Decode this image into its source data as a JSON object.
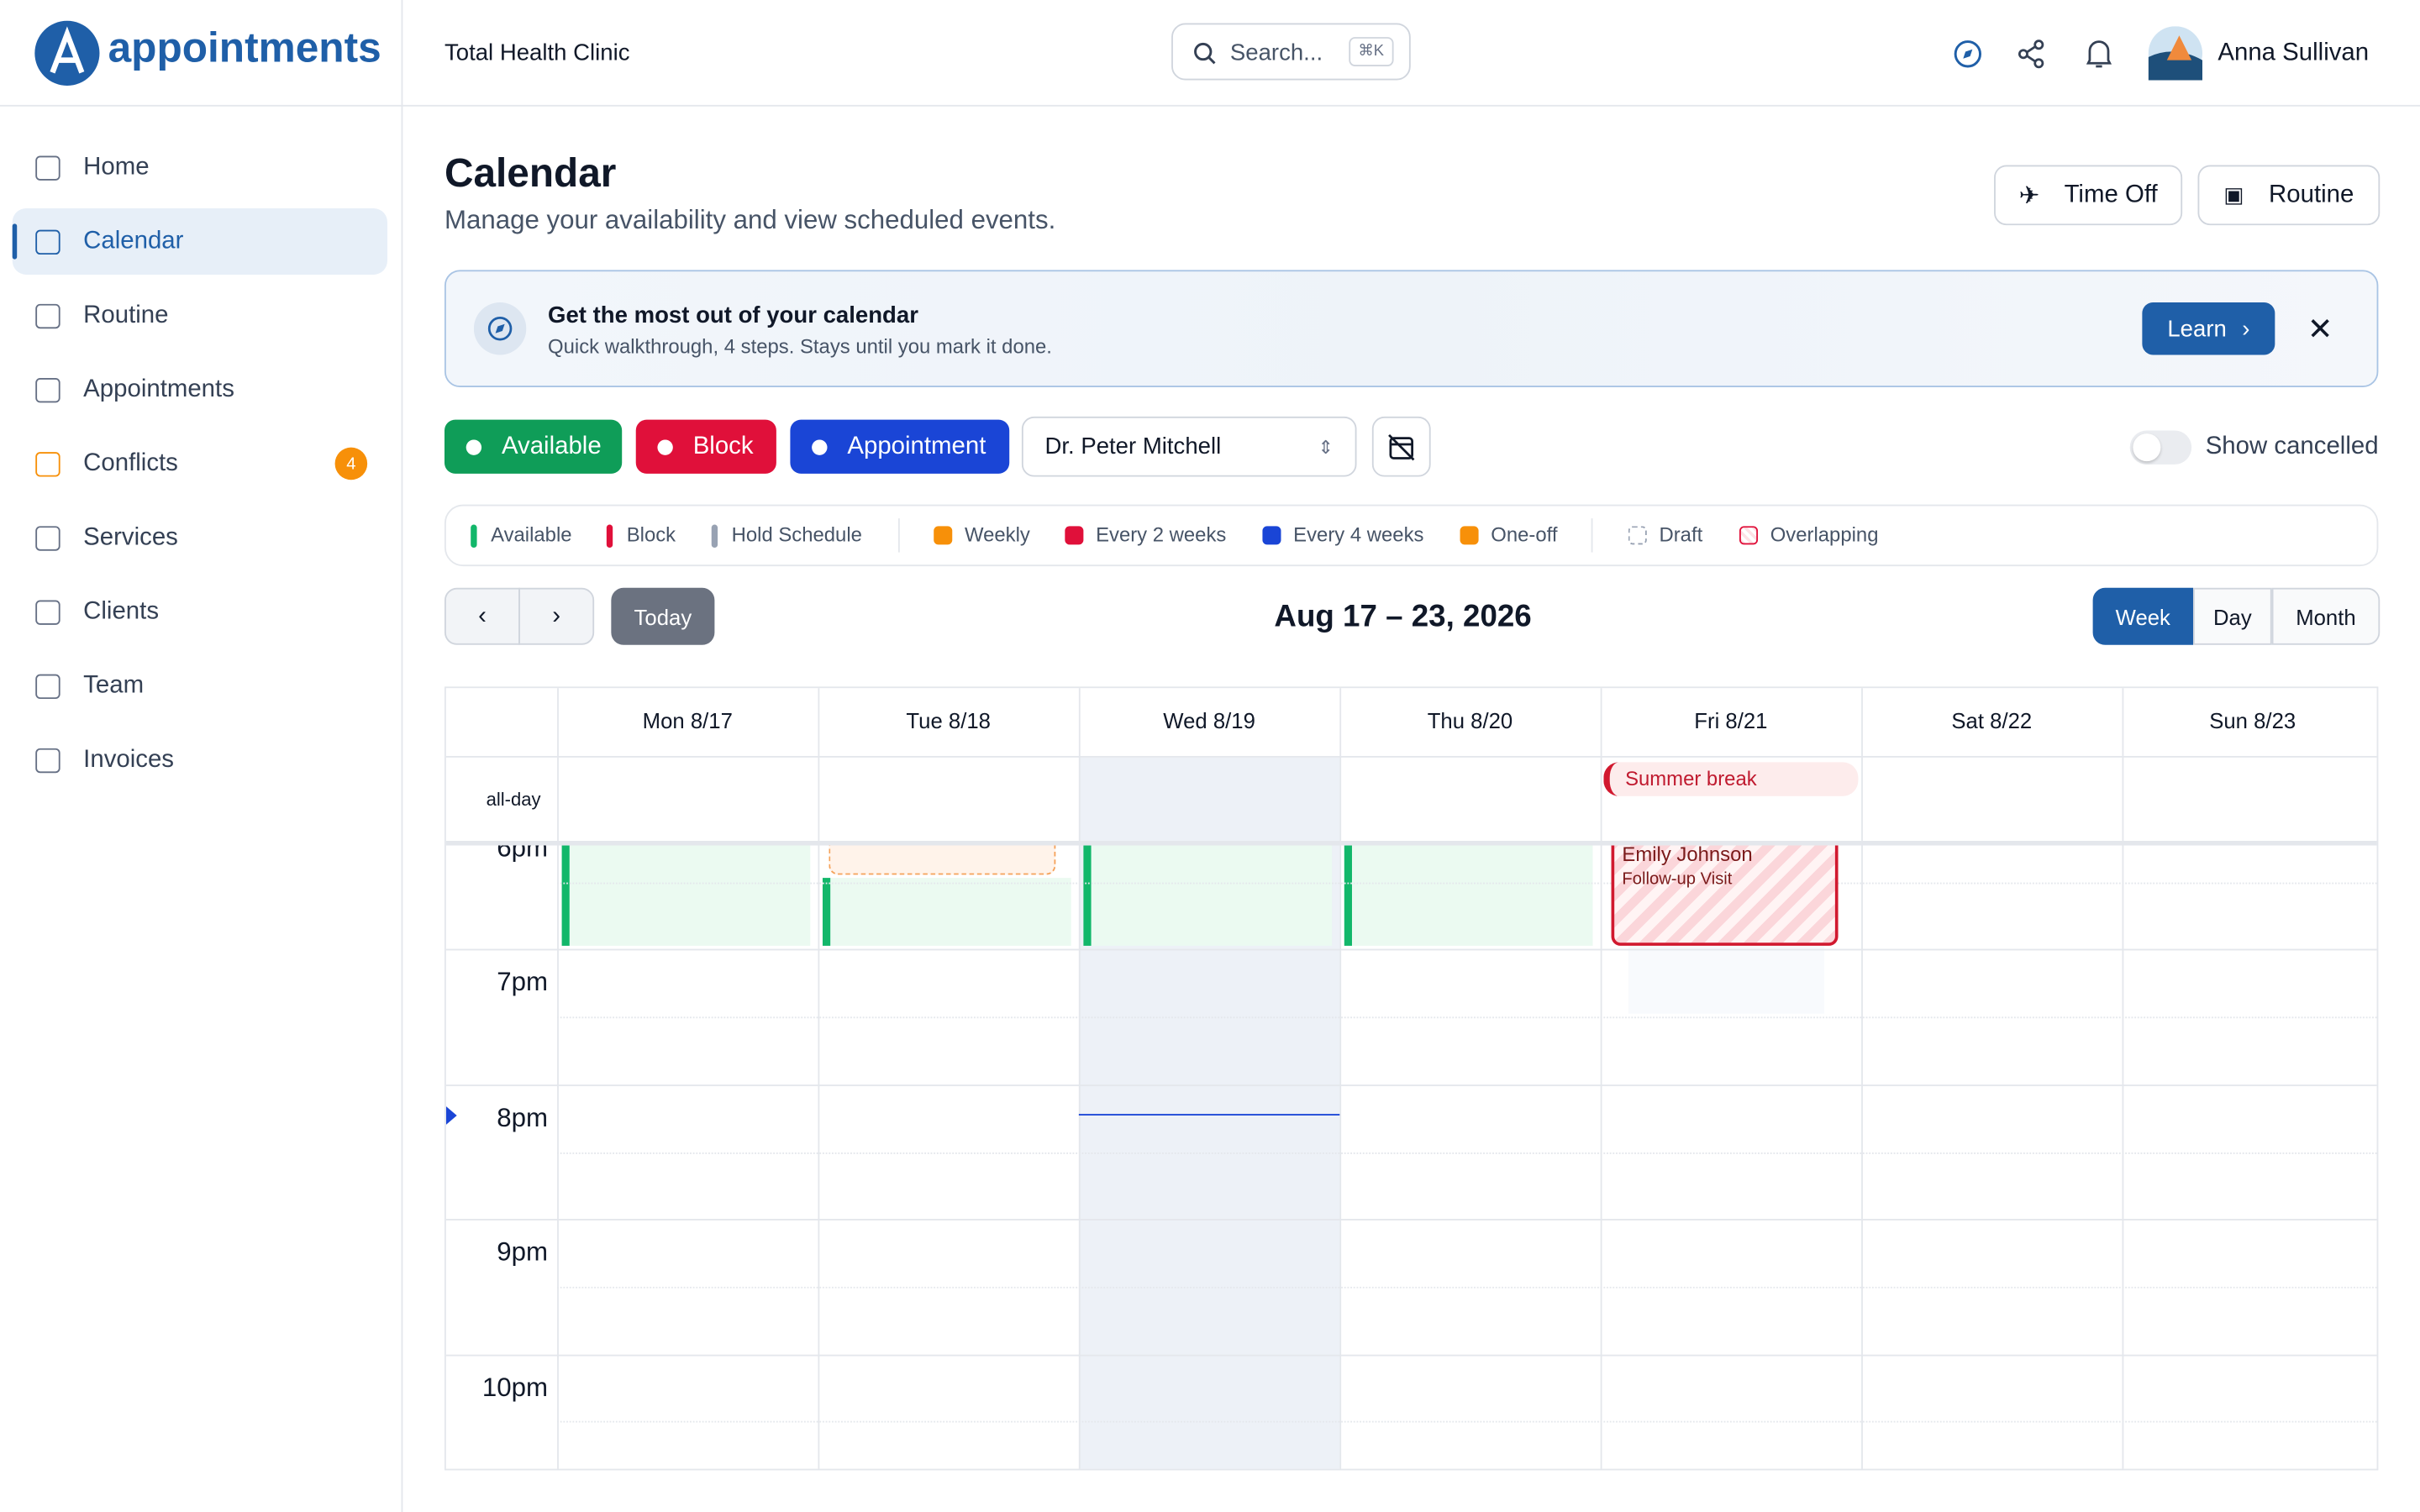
{
  "header": {
    "logo": "appointments",
    "clinic": "Total Health Clinic",
    "search": "Search...",
    "shortcut": "⌘K",
    "user": "Anna Sullivan"
  },
  "nav": [
    {
      "label": "Home"
    },
    {
      "label": "Calendar",
      "active": true
    },
    {
      "label": "Routine"
    },
    {
      "label": "Appointments"
    },
    {
      "label": "Conflicts",
      "badge": 4
    },
    {
      "label": "Services"
    },
    {
      "label": "Clients"
    },
    {
      "label": "Team"
    },
    {
      "label": "Invoices"
    }
  ],
  "page": {
    "title": "Calendar",
    "subtitle": "Manage your availability and view scheduled events.",
    "buttons": [
      "Time Off",
      "Routine"
    ]
  },
  "banner": {
    "title": "Get the most out of your calendar",
    "text": "Quick walkthrough, 4 steps. Stays until you mark it done.",
    "button": "Learn"
  },
  "toolbar": {
    "types": [
      {
        "label": "Available",
        "color": "#0f9d58"
      },
      {
        "label": "Block",
        "color": "#e0103a"
      },
      {
        "label": "Appointment",
        "color": "#1a45d6"
      }
    ],
    "provider": "Dr. Peter Mitchell",
    "toggle": "Show cancelled"
  },
  "legend": [
    {
      "label": "Available",
      "color": "#12b76a",
      "kind": "bar"
    },
    {
      "label": "Block",
      "color": "#e0103a",
      "kind": "bar"
    },
    {
      "label": "Hold Schedule",
      "color": "#98a2b3",
      "kind": "bar"
    },
    {
      "label": "Weekly",
      "color": "#f79009",
      "kind": "box"
    },
    {
      "label": "Every 2 weeks",
      "color": "#e0103a",
      "kind": "box"
    },
    {
      "label": "Every 4 weeks",
      "color": "#1a45d6",
      "kind": "box"
    },
    {
      "label": "One-off",
      "color": "#f79009",
      "kind": "box"
    },
    {
      "label": "Draft",
      "color": "#98a2b3",
      "kind": "dashed"
    },
    {
      "label": "Overlapping",
      "color": "#e0103a",
      "kind": "hatch"
    }
  ],
  "calendar": {
    "today": "Today",
    "range": "Aug 17 – 23, 2026",
    "views": [
      "Week",
      "Day",
      "Month"
    ],
    "days": [
      "Mon 8/17",
      "Tue 8/18",
      "Wed 8/19",
      "Thu 8/20",
      "Fri 8/21",
      "Sat 8/22",
      "Sun 8/23"
    ],
    "all_day_label": "all-day",
    "all_day_event": "Summer break",
    "hours": [
      "6pm",
      "7pm",
      "8pm",
      "9pm",
      "10pm"
    ],
    "event": {
      "name": "Emily Johnson",
      "type": "Follow-up Visit"
    }
  }
}
